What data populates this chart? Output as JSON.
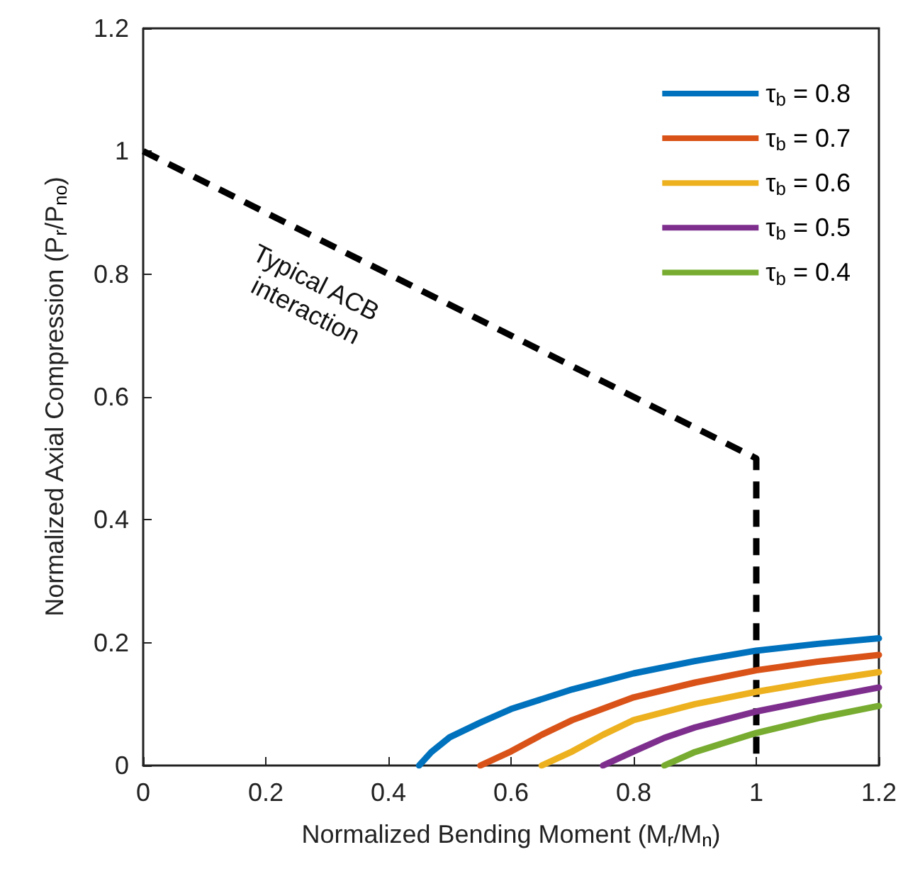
{
  "chart_data": {
    "type": "line",
    "xlabel": "Normalized Bending Moment (M$_{r}$/M$_{n}$)",
    "ylabel": "Normalized Axial Compression (P$_{r}$/P$_{no}$)",
    "xlim": [
      0,
      1.2
    ],
    "xticks": [
      0,
      0.2,
      0.4,
      0.6,
      0.8,
      1,
      1.2
    ],
    "ylim": [
      0,
      1.2
    ],
    "yticks": [
      0,
      0.2,
      0.4,
      0.6,
      0.8,
      1,
      1.2
    ],
    "grid": false,
    "legend": "top right",
    "marker": "none",
    "line_style": "solid",
    "annotations": [
      "Typical ACB interaction"
    ],
    "series": [
      {
        "name": "τ$_{b}$ = 0.8",
        "color": "#0072bd",
        "x": [
          0.45,
          0.47,
          0.5,
          0.55,
          0.6,
          0.7,
          0.8,
          0.9,
          1.0,
          1.1,
          1.2
        ],
        "values": [
          0,
          0.022,
          0.046,
          0.07,
          0.092,
          0.124,
          0.15,
          0.17,
          0.187,
          0.198,
          0.207
        ]
      },
      {
        "name": "τ$_{b}$ = 0.7",
        "color": "#d95319",
        "x": [
          0.55,
          0.6,
          0.65,
          0.7,
          0.8,
          0.9,
          1.0,
          1.1,
          1.2
        ],
        "values": [
          0,
          0.023,
          0.05,
          0.074,
          0.111,
          0.135,
          0.155,
          0.169,
          0.18
        ]
      },
      {
        "name": "τ$_{b}$ = 0.6",
        "color": "#edb120",
        "x": [
          0.65,
          0.7,
          0.75,
          0.8,
          0.9,
          1.0,
          1.1,
          1.2
        ],
        "values": [
          0,
          0.023,
          0.05,
          0.074,
          0.1,
          0.12,
          0.137,
          0.152
        ]
      },
      {
        "name": "τ$_{b}$ = 0.5",
        "color": "#7e2f8e",
        "x": [
          0.75,
          0.8,
          0.85,
          0.9,
          1.0,
          1.1,
          1.2
        ],
        "values": [
          0,
          0.023,
          0.045,
          0.062,
          0.088,
          0.108,
          0.127
        ]
      },
      {
        "name": "τ$_{b}$ = 0.4",
        "color": "#77ac30",
        "x": [
          0.85,
          0.9,
          1.0,
          1.1,
          1.2
        ],
        "values": [
          0,
          0.022,
          0.053,
          0.077,
          0.097
        ]
      },
      {
        "color": "#000000",
        "line_style": "dashed",
        "x": [
          0,
          1,
          1
        ],
        "values": [
          1,
          0.5,
          0
        ]
      }
    ]
  }
}
